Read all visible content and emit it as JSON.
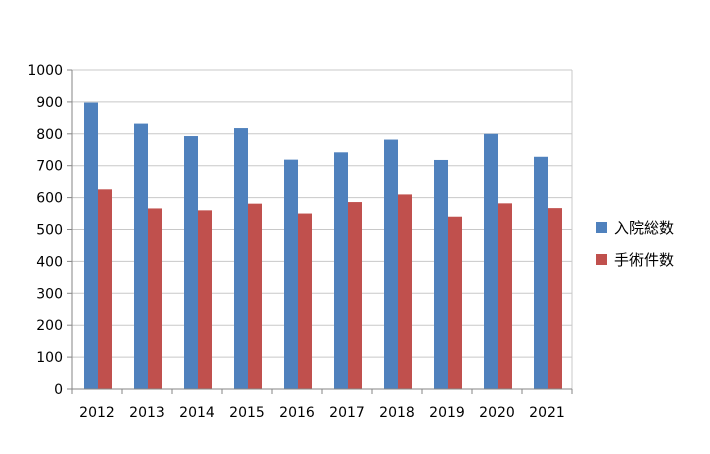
{
  "chart_data": {
    "type": "bar",
    "categories": [
      "2012",
      "2013",
      "2014",
      "2015",
      "2016",
      "2017",
      "2018",
      "2019",
      "2020",
      "2021"
    ],
    "series": [
      {
        "name": "入院総数",
        "color": "#4f81bd",
        "values": [
          898,
          832,
          793,
          818,
          719,
          742,
          782,
          718,
          800,
          728
        ]
      },
      {
        "name": "手術件数",
        "color": "#c0504d",
        "values": [
          626,
          566,
          560,
          581,
          550,
          586,
          610,
          540,
          582,
          567
        ]
      }
    ],
    "ylim": [
      0,
      1000
    ],
    "yticks": [
      0,
      100,
      200,
      300,
      400,
      500,
      600,
      700,
      800,
      900,
      1000
    ],
    "grid": true,
    "legend": "right"
  }
}
